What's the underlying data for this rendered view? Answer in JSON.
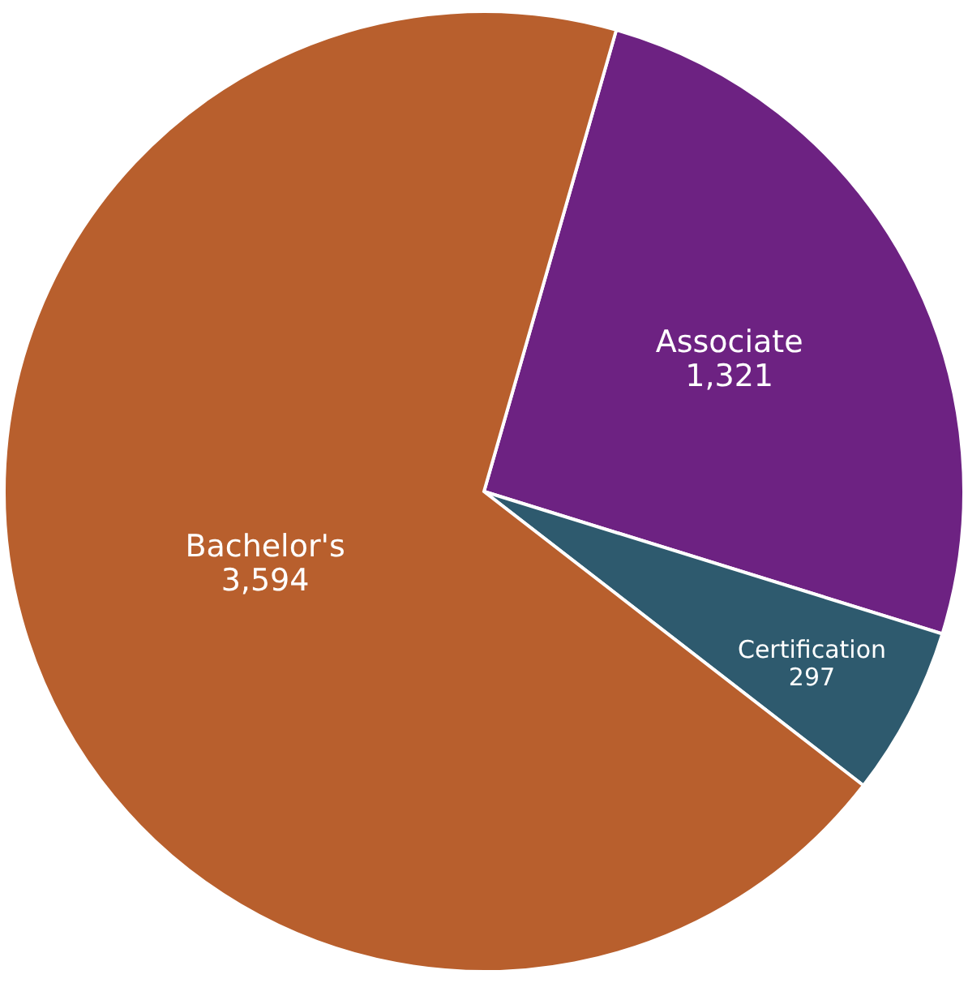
{
  "chart_data": {
    "type": "pie",
    "categories": [
      "Associate",
      "Certification",
      "Bachelor's"
    ],
    "values": [
      1321,
      297,
      3594
    ],
    "colors": [
      "#6d2282",
      "#2e5a6e",
      "#b85f2d"
    ],
    "value_labels": [
      "1,321",
      "297",
      "3,594"
    ]
  }
}
